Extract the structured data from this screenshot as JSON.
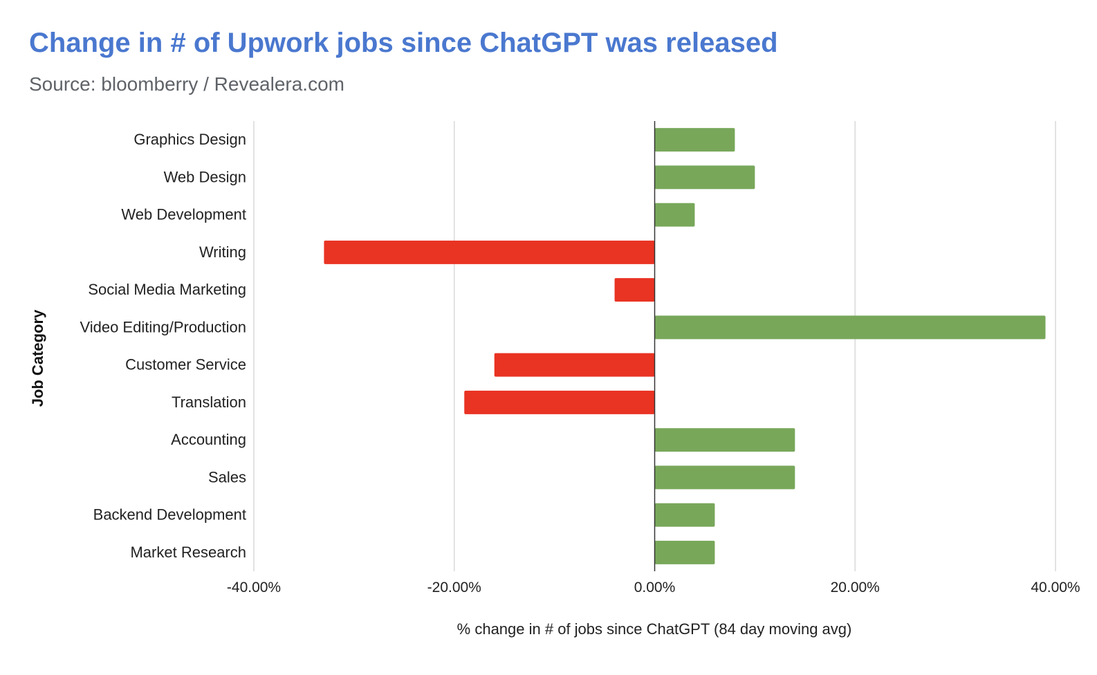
{
  "chart_data": {
    "type": "bar",
    "orientation": "horizontal",
    "title": "Change in # of Upwork jobs since ChatGPT was released",
    "subtitle": "Source: bloomberry / Revealera.com",
    "xlabel": "% change in # of jobs since ChatGPT (84 day moving avg)",
    "ylabel": "Job Category",
    "xlim": [
      -40,
      40
    ],
    "xticks": [
      -40,
      -20,
      0,
      20,
      40
    ],
    "xtick_labels": [
      "-40.00%",
      "-20.00%",
      "0.00%",
      "20.00%",
      "40.00%"
    ],
    "grid": true,
    "legend": "none",
    "categories": [
      "Graphics Design",
      "Web Design",
      "Web Development",
      "Writing",
      "Social Media Marketing",
      "Video Editing/Production",
      "Customer Service",
      "Translation",
      "Accounting",
      "Sales",
      "Backend Development",
      "Market Research"
    ],
    "values": [
      8.0,
      10.0,
      4.0,
      -33.0,
      -4.0,
      39.0,
      -16.0,
      -19.0,
      14.0,
      14.0,
      6.0,
      6.0
    ],
    "colors": {
      "positive": "#78a75a",
      "negative": "#e93323",
      "title": "#4a78cf",
      "grid": "#d9d9d9",
      "axis": "#333333"
    }
  }
}
